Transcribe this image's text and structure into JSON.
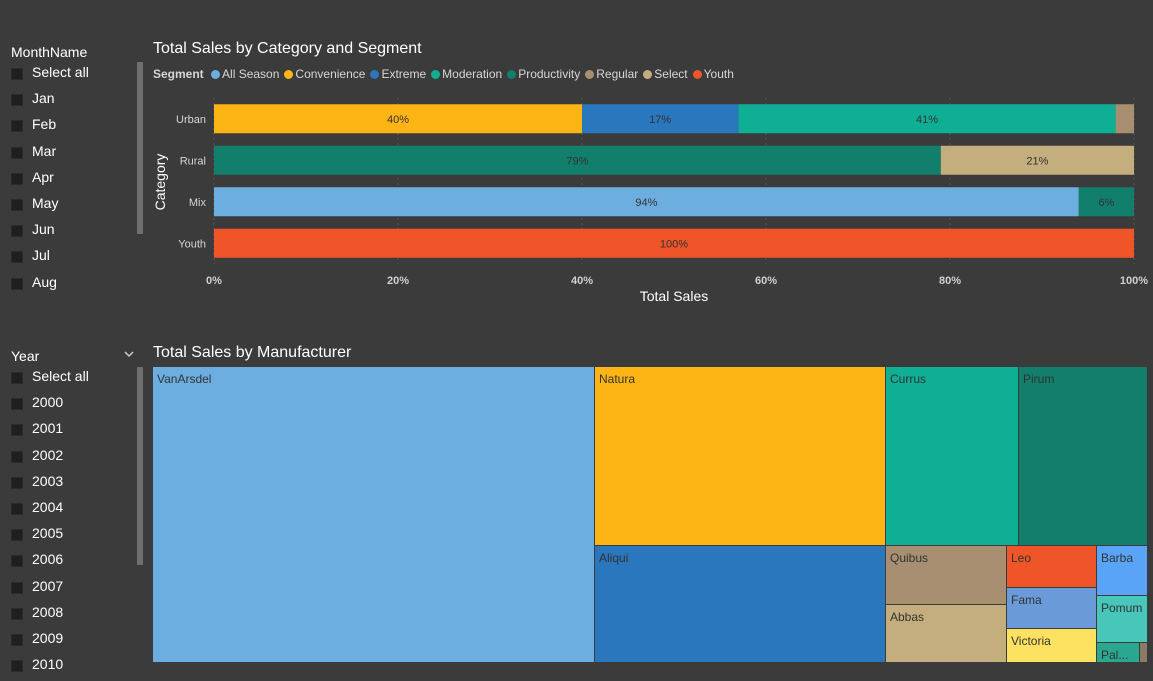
{
  "month_slicer": {
    "title": "MonthName",
    "items": [
      "Select all",
      "Jan",
      "Feb",
      "Mar",
      "Apr",
      "May",
      "Jun",
      "Jul",
      "Aug"
    ]
  },
  "year_slicer": {
    "title": "Year",
    "chevron_icon": "chevron-down-icon",
    "items": [
      "Select all",
      "2000",
      "2001",
      "2002",
      "2003",
      "2004",
      "2005",
      "2006",
      "2007",
      "2008",
      "2009",
      "2010"
    ]
  },
  "bar_chart": {
    "title": "Total Sales by Category and Segment",
    "legend_title": "Segment"
  },
  "treemap_chart": {
    "title": "Total Sales by Manufacturer"
  },
  "chart_data": [
    {
      "type": "bar",
      "orientation": "horizontal",
      "stacked": "100%",
      "title": "Total Sales by Category and Segment",
      "xlabel": "Total Sales",
      "ylabel": "Category",
      "legend_title": "Segment",
      "legend_position": "top-left",
      "categories": [
        "Urban",
        "Rural",
        "Mix",
        "Youth"
      ],
      "x_ticks": [
        "0%",
        "20%",
        "40%",
        "60%",
        "80%",
        "100%"
      ],
      "xlim": [
        0,
        100
      ],
      "grid": "vertical dotted",
      "series": [
        {
          "name": "All Season",
          "color": "#6daee0",
          "values": [
            0,
            0,
            94,
            0
          ],
          "labels": [
            "",
            "",
            "94%",
            ""
          ]
        },
        {
          "name": "Convenience",
          "color": "#fdb515",
          "values": [
            40,
            0,
            0,
            0
          ],
          "labels": [
            "40%",
            "",
            "",
            ""
          ]
        },
        {
          "name": "Extreme",
          "color": "#2a77bd",
          "values": [
            17,
            0,
            0,
            0
          ],
          "labels": [
            "17%",
            "",
            "",
            ""
          ]
        },
        {
          "name": "Moderation",
          "color": "#0faf96",
          "values": [
            41,
            0,
            0,
            0
          ],
          "labels": [
            "41%",
            "",
            "",
            ""
          ]
        },
        {
          "name": "Productivity",
          "color": "#117f6b",
          "values": [
            0,
            79,
            6,
            0
          ],
          "labels": [
            "",
            "79%",
            "6%",
            ""
          ]
        },
        {
          "name": "Regular",
          "color": "#a98f71",
          "values": [
            2,
            0,
            0,
            0
          ],
          "labels": [
            "",
            "",
            "",
            ""
          ]
        },
        {
          "name": "Select",
          "color": "#c4ae7e",
          "values": [
            0,
            21,
            0,
            0
          ],
          "labels": [
            "",
            "21%",
            "",
            ""
          ]
        },
        {
          "name": "Youth",
          "color": "#f05429",
          "values": [
            0,
            0,
            0,
            100
          ],
          "labels": [
            "",
            "",
            "",
            "100%"
          ]
        }
      ]
    },
    {
      "type": "treemap",
      "title": "Total Sales by Manufacturer",
      "items": [
        {
          "name": "VanArsdel",
          "color": "#6daee0"
        },
        {
          "name": "Natura",
          "color": "#fdb515"
        },
        {
          "name": "Currus",
          "color": "#0faf96"
        },
        {
          "name": "Pirum",
          "color": "#117f6b"
        },
        {
          "name": "Aliqui",
          "color": "#2a77bd"
        },
        {
          "name": "Quibus",
          "color": "#a98f71"
        },
        {
          "name": "Abbas",
          "color": "#c4ae7e"
        },
        {
          "name": "Leo",
          "color": "#f05429"
        },
        {
          "name": "Fama",
          "color": "#6a9bd8"
        },
        {
          "name": "Victoria",
          "color": "#fde261"
        },
        {
          "name": "Barba",
          "color": "#5aa4f7"
        },
        {
          "name": "Pomum",
          "color": "#47c6b9"
        },
        {
          "name": "Pal...",
          "color": "#2aa88f"
        },
        {
          "name": "",
          "color": "#8c7a66"
        }
      ]
    }
  ]
}
